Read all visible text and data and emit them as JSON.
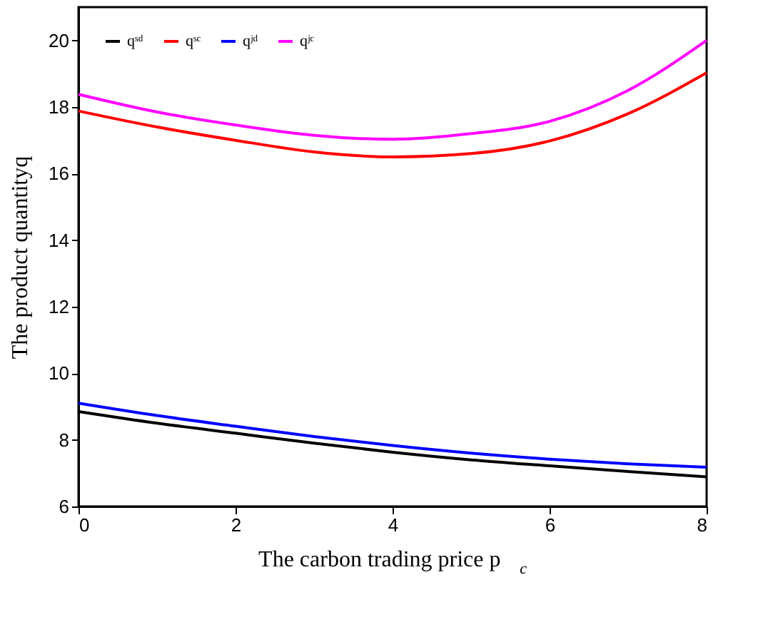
{
  "chart_data": {
    "type": "line",
    "xlabel": "The carbon trading price p$_{c}$",
    "ylabel": "The product quantityq",
    "x": [
      0,
      1,
      2,
      3,
      4,
      5,
      6,
      7,
      8
    ],
    "series": [
      {
        "name": "qˢᵈ",
        "color": "#000000",
        "values": [
          8.85,
          8.5,
          8.2,
          7.9,
          7.63,
          7.4,
          7.22,
          7.05,
          6.89
        ]
      },
      {
        "name": "qˢᶜ",
        "color": "#ff0000",
        "values": [
          17.88,
          17.4,
          17.0,
          16.65,
          16.5,
          16.6,
          16.98,
          17.8,
          19.03
        ]
      },
      {
        "name": "qʲᵈ",
        "color": "#0000ff",
        "values": [
          9.1,
          8.73,
          8.41,
          8.1,
          7.83,
          7.6,
          7.42,
          7.28,
          7.18
        ]
      },
      {
        "name": "qʲᶜ",
        "color": "#ff00ff",
        "values": [
          18.38,
          17.85,
          17.46,
          17.15,
          17.03,
          17.2,
          17.57,
          18.5,
          20.0
        ]
      }
    ],
    "xlim": [
      0,
      8
    ],
    "xticks": [
      0,
      2,
      4,
      6,
      8
    ],
    "ylim": [
      6,
      21
    ],
    "yticks": [
      6,
      8,
      10,
      12,
      14,
      16,
      18,
      20
    ],
    "grid": false,
    "legend": "top left",
    "marker": "none",
    "line_style": "solid"
  }
}
